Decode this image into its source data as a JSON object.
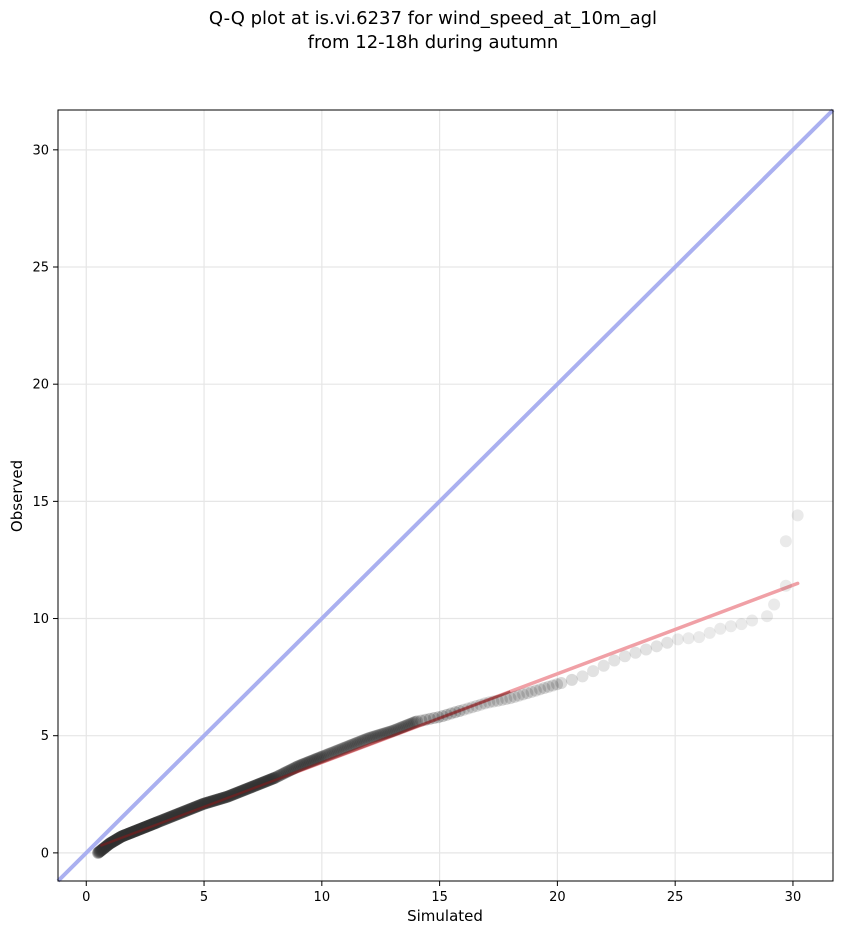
{
  "chart_data": {
    "type": "scatter",
    "title_line1": "Q-Q plot at is.vi.6237 for wind_speed_at_10m_agl",
    "title_line2": "from 12-18h during autumn",
    "xlabel": "Simulated",
    "ylabel": "Observed",
    "xlim": [
      -1.2,
      31.7
    ],
    "ylim": [
      -1.2,
      31.7
    ],
    "xticks": [
      0,
      5,
      10,
      15,
      20,
      25,
      30
    ],
    "yticks": [
      0,
      5,
      10,
      15,
      20,
      25,
      30
    ],
    "xtick_labels": [
      "0",
      "5",
      "10",
      "15",
      "20",
      "25",
      "30"
    ],
    "ytick_labels": [
      "0",
      "5",
      "10",
      "15",
      "20",
      "25",
      "30"
    ],
    "grid": true,
    "colors": {
      "points": "#333333",
      "identity_line": "#aab0f0",
      "fit_line": "#f0a0a6",
      "fit_line_dense": "#8b1a1a"
    },
    "identity_line": {
      "x": [
        -1.2,
        31.7
      ],
      "y": [
        -1.2,
        31.7
      ]
    },
    "fit_line": {
      "x": [
        0.6,
        30.2
      ],
      "y": [
        0.3,
        11.5
      ]
    },
    "quantiles": {
      "x": [
        0.5,
        1.0,
        1.5,
        2.0,
        3.0,
        4.0,
        5.0,
        6.0,
        7.0,
        8.0,
        9.0,
        10.0,
        11.0,
        12.0,
        13.0,
        14.0,
        15.0,
        16.0,
        17.0,
        18.0,
        19.0,
        20.0,
        21.0,
        22.0,
        22.6,
        23.5,
        24.5,
        25.0,
        26.0,
        27.0,
        28.0,
        28.7,
        29.2,
        29.7,
        30.2
      ],
      "y": [
        0.0,
        0.4,
        0.7,
        0.9,
        1.3,
        1.7,
        2.1,
        2.4,
        2.8,
        3.2,
        3.7,
        4.1,
        4.5,
        4.9,
        5.2,
        5.6,
        5.8,
        6.1,
        6.4,
        6.6,
        6.9,
        7.2,
        7.5,
        8.0,
        8.3,
        8.6,
        8.9,
        9.1,
        9.2,
        9.6,
        9.8,
        10.1,
        10.6,
        13.3,
        14.4
      ]
    }
  }
}
